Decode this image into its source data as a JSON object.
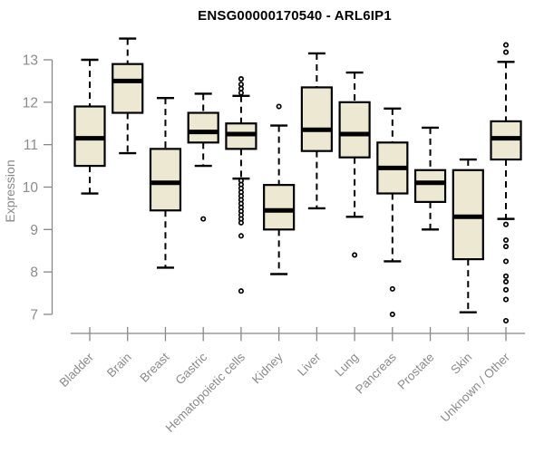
{
  "chart_data": {
    "type": "boxplot",
    "title": "ENSG00000170540 - ARL6IP1",
    "xlabel": "",
    "ylabel": "Expression",
    "ylim": [
      6.8,
      13.6
    ],
    "yticks": [
      7,
      8,
      9,
      10,
      11,
      12,
      13
    ],
    "grid": false,
    "legend": null,
    "categories": [
      "Bladder",
      "Brain",
      "Breast",
      "Gastric",
      "Hematopoietic cells",
      "Kidney",
      "Liver",
      "Lung",
      "Pancreas",
      "Prostate",
      "Skin",
      "Unknown / Other"
    ],
    "series": [
      {
        "name": "Bladder",
        "low": 9.85,
        "q1": 10.5,
        "median": 11.15,
        "q3": 11.9,
        "high": 13.0,
        "outliers": []
      },
      {
        "name": "Brain",
        "low": 10.8,
        "q1": 11.75,
        "median": 12.5,
        "q3": 12.9,
        "high": 13.5,
        "outliers": []
      },
      {
        "name": "Breast",
        "low": 8.1,
        "q1": 9.45,
        "median": 10.1,
        "q3": 10.9,
        "high": 12.1,
        "outliers": []
      },
      {
        "name": "Gastric",
        "low": 10.5,
        "q1": 11.05,
        "median": 11.3,
        "q3": 11.75,
        "high": 12.2,
        "outliers": [
          9.25
        ]
      },
      {
        "name": "Hematopoietic cells",
        "low": 10.2,
        "q1": 10.9,
        "median": 11.25,
        "q3": 11.5,
        "high": 12.15,
        "outliers": [
          12.55,
          12.42,
          12.32,
          12.22,
          10.15,
          10.06,
          9.97,
          9.88,
          9.79,
          9.7,
          9.61,
          9.52,
          9.43,
          9.34,
          9.25,
          9.16,
          8.85,
          7.55
        ]
      },
      {
        "name": "Kidney",
        "low": 7.95,
        "q1": 9.0,
        "median": 9.45,
        "q3": 10.05,
        "high": 11.45,
        "outliers": [
          11.9
        ]
      },
      {
        "name": "Liver",
        "low": 9.5,
        "q1": 10.85,
        "median": 11.35,
        "q3": 12.35,
        "high": 13.15,
        "outliers": []
      },
      {
        "name": "Lung",
        "low": 9.3,
        "q1": 10.7,
        "median": 11.25,
        "q3": 12.0,
        "high": 12.7,
        "outliers": [
          8.4
        ]
      },
      {
        "name": "Pancreas",
        "low": 8.25,
        "q1": 9.85,
        "median": 10.45,
        "q3": 11.05,
        "high": 11.85,
        "outliers": [
          7.6,
          7.0
        ]
      },
      {
        "name": "Prostate",
        "low": 9.0,
        "q1": 9.65,
        "median": 10.1,
        "q3": 10.4,
        "high": 11.4,
        "outliers": []
      },
      {
        "name": "Skin",
        "low": 7.05,
        "q1": 8.3,
        "median": 9.3,
        "q3": 10.4,
        "high": 10.65,
        "outliers": []
      },
      {
        "name": "Unknown / Other",
        "low": 9.25,
        "q1": 10.65,
        "median": 11.15,
        "q3": 11.55,
        "high": 12.95,
        "outliers": [
          13.35,
          13.18,
          9.12,
          8.75,
          8.6,
          8.25,
          7.9,
          7.77,
          7.58,
          7.35,
          6.85
        ]
      }
    ],
    "colors": {
      "box_fill": "#ece8d1",
      "box_stroke": "#000000",
      "median": "#000000",
      "whisker": "#000000",
      "outlier_stroke": "#000000",
      "axis": "#888888",
      "tick_label": "#8b8b8b",
      "title": "#000000",
      "background": "#ffffff"
    }
  }
}
